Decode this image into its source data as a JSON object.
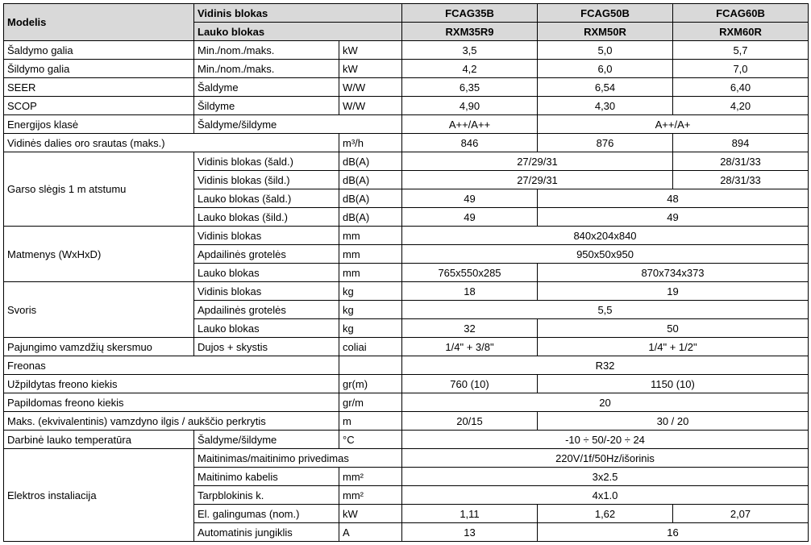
{
  "hdr": {
    "modelis": "Modelis",
    "vidinis": "Vidinis blokas",
    "lauko": "Lauko blokas",
    "m1_vid": "FCAG35B",
    "m2_vid": "FCAG50B",
    "m3_vid": "FCAG60B",
    "m1_out": "RXM35R9",
    "m2_out": "RXM50R",
    "m3_out": "RXM60R"
  },
  "rows": {
    "sald_galia": {
      "l": "Šaldymo galia",
      "sub": "Min./nom./maks.",
      "u": "kW",
      "v1": "3,5",
      "v2": "5,0",
      "v3": "5,7"
    },
    "sild_galia": {
      "l": "Šildymo galia",
      "sub": "Min./nom./maks.",
      "u": "kW",
      "v1": "4,2",
      "v2": "6,0",
      "v3": "7,0"
    },
    "seer": {
      "l": "SEER",
      "sub": "Šaldyme",
      "u": "W/W",
      "v1": "6,35",
      "v2": "6,54",
      "v3": "6,40"
    },
    "scop": {
      "l": "SCOP",
      "sub": "Šildyme",
      "u": "W/W",
      "v1": "4,90",
      "v2": "4,30",
      "v3": "4,20"
    },
    "energ": {
      "l": "Energijos klasė",
      "sub": "Šaldyme/šildyme",
      "u": "",
      "v1": "A++/A++",
      "v23": "A++/A+"
    },
    "airflow": {
      "l": "Vidinės dalies oro srautas (maks.)",
      "u": "m³/h",
      "v1": "846",
      "v2": "876",
      "v3": "894"
    },
    "garso": {
      "l": "Garso slėgis 1 m atstumu",
      "r1": {
        "sub": "Vidinis blokas (šald.)",
        "u": "dB(A)",
        "v12": "27/29/31",
        "v3": "28/31/33"
      },
      "r2": {
        "sub": "Vidinis blokas (šild.)",
        "u": "dB(A)",
        "v12": "27/29/31",
        "v3": "28/31/33"
      },
      "r3": {
        "sub": "Lauko blokas (šald.)",
        "u": "dB(A)",
        "v1": "49",
        "v23": "48"
      },
      "r4": {
        "sub": "Lauko blokas (šild.)",
        "u": "dB(A)",
        "v1": "49",
        "v23": "49"
      }
    },
    "matm": {
      "l": "Matmenys (WxHxD)",
      "r1": {
        "sub": "Vidinis blokas",
        "u": "mm",
        "v": "840x204x840"
      },
      "r2": {
        "sub": "Apdailinės grotelės",
        "u": "mm",
        "v": "950x50x950"
      },
      "r3": {
        "sub": "Lauko blokas",
        "u": "mm",
        "v1": "765x550x285",
        "v23": "870x734x373"
      }
    },
    "svoris": {
      "l": "Svoris",
      "r1": {
        "sub": "Vidinis blokas",
        "u": "kg",
        "v1": "18",
        "v23": "19"
      },
      "r2": {
        "sub": "Apdailinės grotelės",
        "u": "kg",
        "v": "5,5"
      },
      "r3": {
        "sub": "Lauko blokas",
        "u": "kg",
        "v1": "32",
        "v23": "50"
      }
    },
    "pajung": {
      "l": "Pajungimo vamzdžių skersmuo",
      "sub": "Dujos + skystis",
      "u": "coliai",
      "v1": "1/4\" + 3/8\"",
      "v23": "1/4\" + 1/2\""
    },
    "freonas": {
      "l": "Freonas",
      "v": "R32"
    },
    "uzpild": {
      "l": "Užpildytas freono kiekis",
      "u": "gr(m)",
      "v1": "760 (10)",
      "v23": "1150 (10)"
    },
    "papild": {
      "l": "Papildomas freono kiekis",
      "u": "gr/m",
      "v": "20"
    },
    "maks": {
      "l": "Maks. (ekvivalentinis) vamzdyno ilgis / aukščio perkrytis",
      "u": "m",
      "v1": "20/15",
      "v23": "30 / 20"
    },
    "darb": {
      "l": "Darbinė lauko temperatūra",
      "sub": "Šaldyme/šildyme",
      "u": "°C",
      "v": "-10 ÷ 50/-20 ÷ 24"
    },
    "elektr": {
      "l": "Elektros instaliacija",
      "r1": {
        "sub": "Maitinimas/maitinimo privedimas",
        "v": "220V/1f/50Hz/išorinis"
      },
      "r2": {
        "sub": "Maitinimo kabelis",
        "u": "mm²",
        "v": "3x2.5"
      },
      "r3": {
        "sub": "Tarpblokinis k.",
        "u": "mm²",
        "v": "4x1.0"
      },
      "r4": {
        "sub": "El. galingumas (nom.)",
        "u": "kW",
        "v1": "1,11",
        "v2": "1,62",
        "v3": "2,07"
      },
      "r5": {
        "sub": "Automatinis jungiklis",
        "u": "A",
        "v1": "13",
        "v23": "16"
      }
    }
  }
}
